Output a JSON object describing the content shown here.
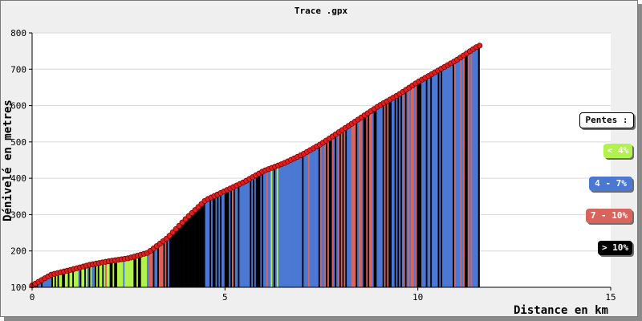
{
  "chart_data": {
    "type": "area",
    "title": "Trace .gpx",
    "xlabel": "Distance en km",
    "ylabel": "Dénivelé en metres",
    "xlim": [
      0,
      15
    ],
    "ylim": [
      100,
      800
    ],
    "x_ticks": [
      "0",
      "5",
      "10",
      "15"
    ],
    "y_ticks": [
      "100",
      "200",
      "300",
      "400",
      "500",
      "600",
      "700",
      "800"
    ],
    "grid": true,
    "series": [
      {
        "x": [
          0,
          0.5,
          1,
          1.5,
          2,
          2.5,
          3,
          3.5,
          4,
          4.5,
          5,
          5.5,
          6,
          6.5,
          7,
          7.5,
          8,
          8.5,
          9,
          9.5,
          10,
          10.5,
          11,
          11.5,
          11.6
        ],
        "y": [
          105,
          135,
          148,
          162,
          172,
          180,
          195,
          235,
          290,
          340,
          365,
          390,
          420,
          440,
          465,
          495,
          530,
          565,
          600,
          630,
          665,
          695,
          725,
          760,
          765
        ]
      }
    ],
    "legend": {
      "title": "Pentes :",
      "placement": "right",
      "items": [
        {
          "label": "< 4%",
          "color": "#b2f24d",
          "text_color": "#ffffff"
        },
        {
          "label": "4 - 7%",
          "color": "#4a78d2",
          "text_color": "#ffffff"
        },
        {
          "label": "7 - 10%",
          "color": "#d9645c",
          "text_color": "#ffffff"
        },
        {
          "label": "> 10%",
          "color": "#000000",
          "text_color": "#ffffff"
        }
      ]
    },
    "colors": {
      "marker": "#e02020",
      "marker_outline": "#7a0000",
      "grid": "#d8d8d8",
      "plot_bg": "#ffffff",
      "frame_bg": "#efefef"
    }
  }
}
